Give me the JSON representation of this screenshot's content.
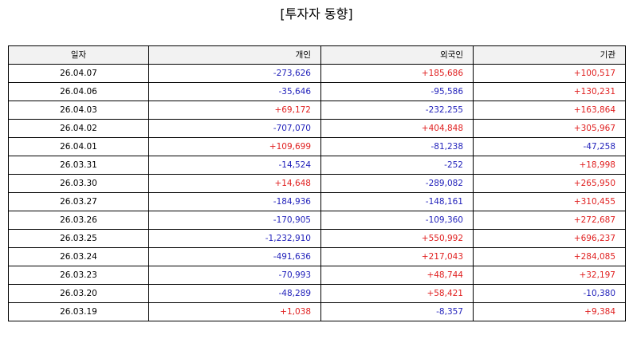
{
  "title": "[투자자 동향]",
  "colors": {
    "negative": "#2222bb",
    "positive": "#e02020",
    "header_bg": "#f2f2f2"
  },
  "columns": [
    "일자",
    "개인",
    "외국인",
    "기관"
  ],
  "rows": [
    [
      "26.04.07",
      "-273,626",
      "+185,686",
      "+100,517"
    ],
    [
      "26.04.06",
      "-35,646",
      "-95,586",
      "+130,231"
    ],
    [
      "26.04.03",
      "+69,172",
      "-232,255",
      "+163,864"
    ],
    [
      "26.04.02",
      "-707,070",
      "+404,848",
      "+305,967"
    ],
    [
      "26.04.01",
      "+109,699",
      "-81,238",
      "-47,258"
    ],
    [
      "26.03.31",
      "-14,524",
      "-252",
      "+18,998"
    ],
    [
      "26.03.30",
      "+14,648",
      "-289,082",
      "+265,950"
    ],
    [
      "26.03.27",
      "-184,936",
      "-148,161",
      "+310,455"
    ],
    [
      "26.03.26",
      "-170,905",
      "-109,360",
      "+272,687"
    ],
    [
      "26.03.25",
      "-1,232,910",
      "+550,992",
      "+696,237"
    ],
    [
      "26.03.24",
      "-491,636",
      "+217,043",
      "+284,085"
    ],
    [
      "26.03.23",
      "-70,993",
      "+48,744",
      "+32,197"
    ],
    [
      "26.03.20",
      "-48,289",
      "+58,421",
      "-10,380"
    ],
    [
      "26.03.19",
      "+1,038",
      "-8,357",
      "+9,384"
    ]
  ]
}
